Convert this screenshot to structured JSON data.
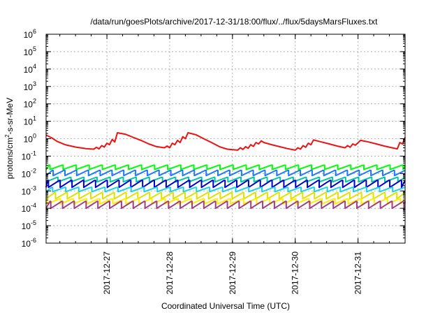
{
  "chart_data": {
    "type": "line",
    "title": "/data/run/goesPlots/archive/2017-12-31/18:00/flux/../flux/5daysMarsFluxes.txt",
    "xlabel": "Coordinated Universal Time (UTC)",
    "ylabel_parts": [
      "protons/cm",
      "2",
      "-s-sr-MeV"
    ],
    "yscale": "log",
    "ylim": [
      1e-06,
      1000000.0
    ],
    "xlim": [
      "2017-12-26 00:45",
      "2017-12-31 18:00"
    ],
    "grid": true,
    "legend": "none",
    "y_ticks": [
      {
        "value": 1e-06,
        "base": "10",
        "exp": "-6"
      },
      {
        "value": 1e-05,
        "base": "10",
        "exp": "-5"
      },
      {
        "value": 0.0001,
        "base": "10",
        "exp": "-4"
      },
      {
        "value": 0.001,
        "base": "10",
        "exp": "-3"
      },
      {
        "value": 0.01,
        "base": "10",
        "exp": "-2"
      },
      {
        "value": 0.1,
        "base": "10",
        "exp": "-1"
      },
      {
        "value": 1.0,
        "base": "10",
        "exp": "0"
      },
      {
        "value": 10.0,
        "base": "10",
        "exp": "1"
      },
      {
        "value": 100.0,
        "base": "10",
        "exp": "2"
      },
      {
        "value": 1000.0,
        "base": "10",
        "exp": "3"
      },
      {
        "value": 10000.0,
        "base": "10",
        "exp": "4"
      },
      {
        "value": 100000.0,
        "base": "10",
        "exp": "5"
      },
      {
        "value": 1000000.0,
        "base": "10",
        "exp": "6"
      }
    ],
    "x_ticks": [
      {
        "value": "2017-12-27 00:00",
        "label": "2017-12-27"
      },
      {
        "value": "2017-12-28 00:00",
        "label": "2017-12-28"
      },
      {
        "value": "2017-12-29 00:00",
        "label": "2017-12-29"
      },
      {
        "value": "2017-12-30 00:00",
        "label": "2017-12-30"
      },
      {
        "value": "2017-12-31 00:00",
        "label": "2017-12-31"
      }
    ],
    "series": [
      {
        "color": "#ee1111",
        "points": [
          [
            "2017-12-26 00:45",
            1.6
          ],
          [
            "2017-12-26 03:00",
            1.1
          ],
          [
            "2017-12-26 05:00",
            0.7
          ],
          [
            "2017-12-26 08:00",
            0.45
          ],
          [
            "2017-12-26 12:00",
            0.33
          ],
          [
            "2017-12-26 16:00",
            0.27
          ],
          [
            "2017-12-26 19:00",
            0.25
          ],
          [
            "2017-12-26 20:00",
            0.32
          ],
          [
            "2017-12-26 21:00",
            0.26
          ],
          [
            "2017-12-26 22:00",
            0.4
          ],
          [
            "2017-12-26 23:00",
            0.33
          ],
          [
            "2017-12-27 00:00",
            0.55
          ],
          [
            "2017-12-27 01:00",
            0.45
          ],
          [
            "2017-12-27 02:00",
            0.9
          ],
          [
            "2017-12-27 03:00",
            0.65
          ],
          [
            "2017-12-27 04:00",
            2.2
          ],
          [
            "2017-12-27 07:00",
            1.8
          ],
          [
            "2017-12-27 10:00",
            1.2
          ],
          [
            "2017-12-27 13:00",
            0.8
          ],
          [
            "2017-12-27 16:00",
            0.5
          ],
          [
            "2017-12-27 19:00",
            0.35
          ],
          [
            "2017-12-27 22:00",
            0.3
          ],
          [
            "2017-12-27 23:00",
            0.38
          ],
          [
            "2017-12-28 00:00",
            0.3
          ],
          [
            "2017-12-28 01:00",
            0.55
          ],
          [
            "2017-12-28 02:00",
            0.45
          ],
          [
            "2017-12-28 03:00",
            0.8
          ],
          [
            "2017-12-28 04:00",
            0.6
          ],
          [
            "2017-12-28 05:00",
            1.3
          ],
          [
            "2017-12-28 06:00",
            1.0
          ],
          [
            "2017-12-28 07:00",
            2.2
          ],
          [
            "2017-12-28 10:00",
            1.7
          ],
          [
            "2017-12-28 13:00",
            1.0
          ],
          [
            "2017-12-28 16:00",
            0.6
          ],
          [
            "2017-12-28 19:00",
            0.35
          ],
          [
            "2017-12-28 22:00",
            0.25
          ],
          [
            "2017-12-29 02:00",
            0.22
          ],
          [
            "2017-12-29 03:00",
            0.3
          ],
          [
            "2017-12-29 04:00",
            0.24
          ],
          [
            "2017-12-29 05:00",
            0.35
          ],
          [
            "2017-12-29 06:00",
            0.28
          ],
          [
            "2017-12-29 07:00",
            0.45
          ],
          [
            "2017-12-29 08:00",
            0.36
          ],
          [
            "2017-12-29 09:00",
            0.6
          ],
          [
            "2017-12-29 10:00",
            0.5
          ],
          [
            "2017-12-29 11:00",
            0.75
          ],
          [
            "2017-12-29 12:00",
            0.6
          ],
          [
            "2017-12-29 15:00",
            0.45
          ],
          [
            "2017-12-29 18:00",
            0.35
          ],
          [
            "2017-12-29 21:00",
            0.27
          ],
          [
            "2017-12-30 00:00",
            0.22
          ],
          [
            "2017-12-30 01:00",
            0.3
          ],
          [
            "2017-12-30 02:00",
            0.25
          ],
          [
            "2017-12-30 03:00",
            0.4
          ],
          [
            "2017-12-30 04:00",
            0.32
          ],
          [
            "2017-12-30 05:00",
            0.55
          ],
          [
            "2017-12-30 06:00",
            0.45
          ],
          [
            "2017-12-30 07:00",
            0.85
          ],
          [
            "2017-12-30 10:00",
            0.65
          ],
          [
            "2017-12-30 13:00",
            0.5
          ],
          [
            "2017-12-30 16:00",
            0.38
          ],
          [
            "2017-12-30 19:00",
            0.3
          ],
          [
            "2017-12-30 20:00",
            0.4
          ],
          [
            "2017-12-30 21:00",
            0.32
          ],
          [
            "2017-12-30 22:00",
            0.5
          ],
          [
            "2017-12-30 23:00",
            0.42
          ],
          [
            "2017-12-31 01:00",
            0.8
          ],
          [
            "2017-12-31 04:00",
            0.65
          ],
          [
            "2017-12-31 07:00",
            0.5
          ],
          [
            "2017-12-31 10:00",
            0.38
          ],
          [
            "2017-12-31 13:00",
            0.3
          ],
          [
            "2017-12-31 15:00",
            0.26
          ],
          [
            "2017-12-31 16:00",
            0.6
          ],
          [
            "2017-12-31 17:00",
            0.5
          ],
          [
            "2017-12-31 18:00",
            1.2
          ]
        ]
      },
      {
        "color": "#00ff00",
        "pattern": "sawtooth",
        "high": 0.03,
        "low": 0.017,
        "period_hours": 5
      },
      {
        "color": "#1e78ff",
        "pattern": "sawtooth",
        "high": 0.015,
        "low": 0.0075,
        "period_hours": 4.5
      },
      {
        "color": "#00c8a0",
        "pattern": "sawtooth",
        "high": 0.006,
        "low": 0.0033,
        "period_hours": 5
      },
      {
        "color": "#0000cc",
        "pattern": "sawtooth",
        "high": 0.004,
        "low": 0.0016,
        "period_hours": 4.5
      },
      {
        "color": "#19d3e6",
        "pattern": "sawtooth",
        "high": 0.0016,
        "low": 0.0009,
        "period_hours": 5
      },
      {
        "color": "#e2e000",
        "pattern": "sawtooth",
        "high": 0.0008,
        "low": 0.00035,
        "period_hours": 4.5
      },
      {
        "color": "#ffee00",
        "pattern": "sawtooth",
        "high": 0.00035,
        "low": 0.00018,
        "period_hours": 5
      },
      {
        "color": "#a33e80",
        "pattern": "sawtooth",
        "high": 0.00025,
        "low": 0.0001,
        "period_hours": 4.5
      }
    ]
  }
}
